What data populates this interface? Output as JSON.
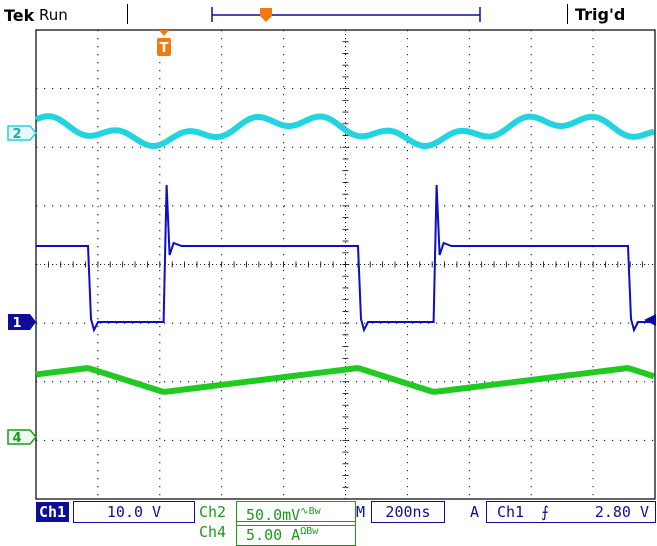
{
  "header": {
    "brand": "Tek",
    "acq_state": "Run",
    "trigger_status": "Trig'd"
  },
  "markers": {
    "trigger_pos": "T",
    "ch2": "2",
    "ch1": "1",
    "ch4": "4"
  },
  "status": {
    "ch1_label": "Ch1",
    "ch1_scale": "10.0 V",
    "ch2_label": "Ch2",
    "ch2_scale": "50.0mV",
    "ch2_flags": "∿Bw",
    "ch4_label": "Ch4",
    "ch4_scale": "5.00 A",
    "ch4_flags": "ΩBw",
    "timebase_prefix": "M",
    "timebase": "200ns",
    "trigger_mode": "A",
    "trigger_source": "Ch1",
    "trigger_slope": "⨍",
    "trigger_level": "2.80 V"
  },
  "colors": {
    "ch1": "#0d0dc8",
    "ch2": "#22d3e0",
    "ch4": "#22c922",
    "grid": "#000000",
    "trigger": "#f07a10"
  }
}
